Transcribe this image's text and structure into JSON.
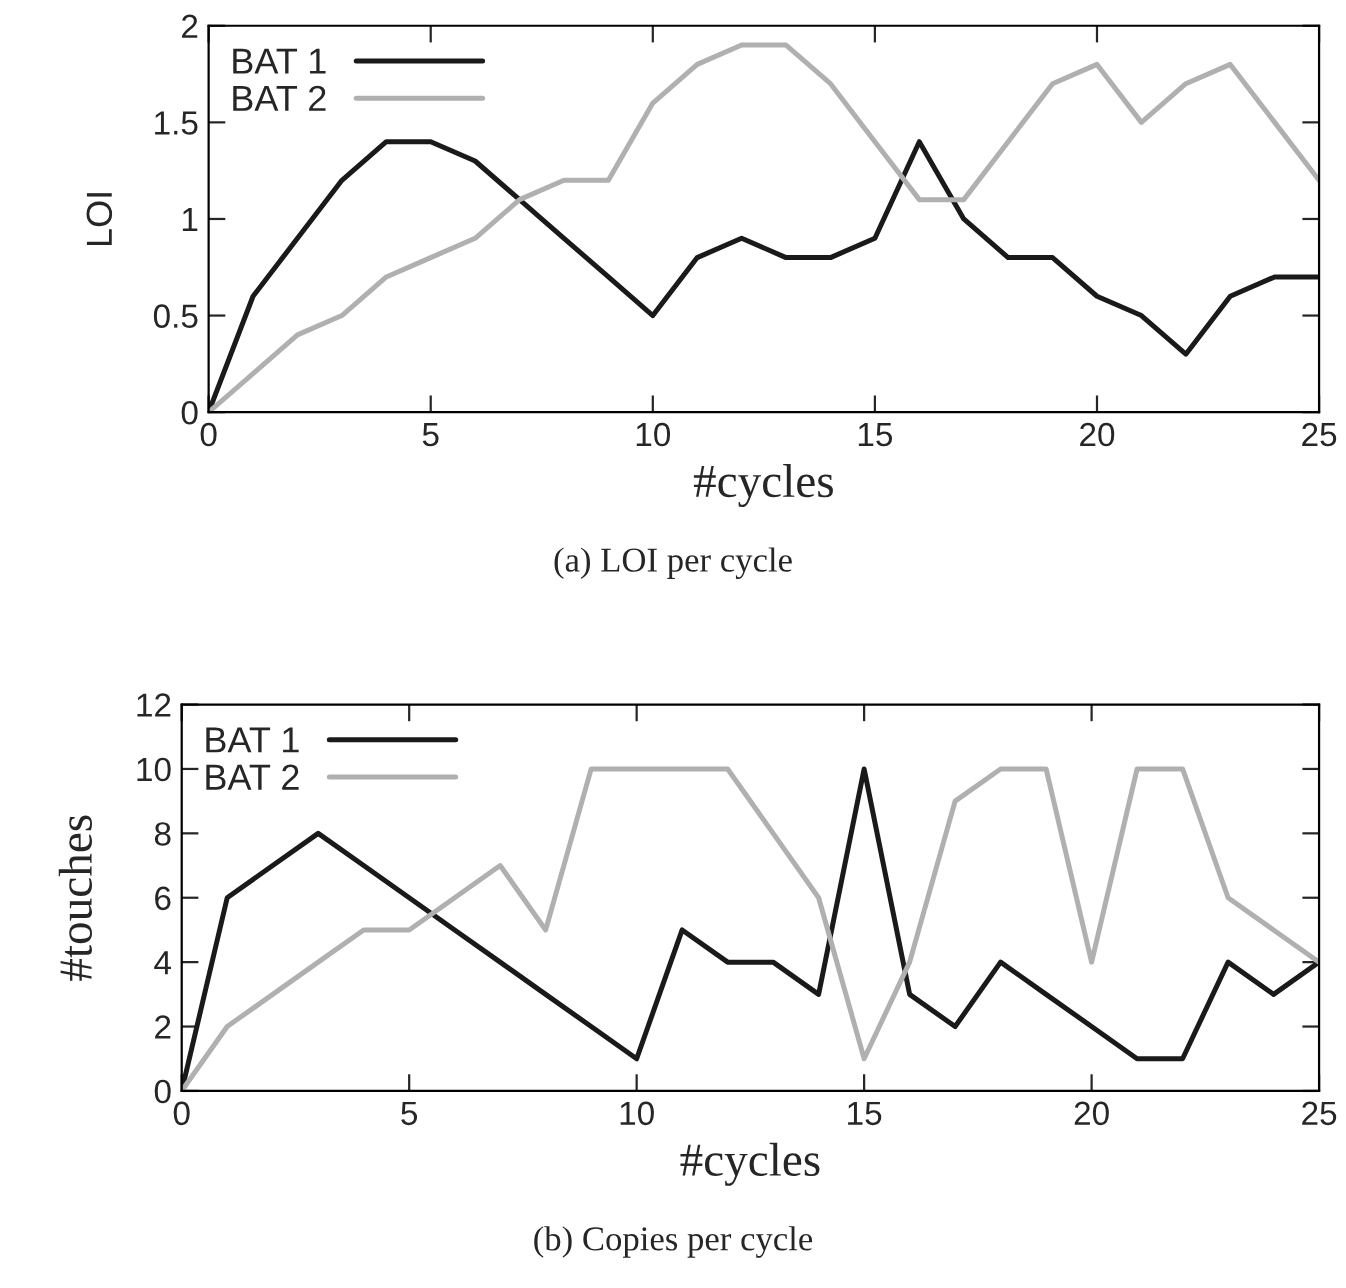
{
  "chart_data": [
    {
      "type": "line",
      "xlabel": "#cycles",
      "ylabel": "LOI",
      "x": [
        0,
        1,
        2,
        3,
        4,
        5,
        6,
        7,
        8,
        9,
        10,
        11,
        12,
        13,
        14,
        15,
        16,
        17,
        18,
        19,
        20,
        21,
        22,
        23,
        24,
        25
      ],
      "series": [
        {
          "name": "BAT 1",
          "color": "#1a1a1a",
          "values": [
            0,
            0.6,
            0.9,
            1.2,
            1.4,
            1.4,
            1.3,
            1.1,
            0.9,
            0.7,
            0.5,
            0.8,
            0.9,
            0.8,
            0.8,
            0.9,
            1.4,
            1.0,
            0.8,
            0.8,
            0.6,
            0.5,
            0.3,
            0.6,
            0.7,
            0.7
          ]
        },
        {
          "name": "BAT 2",
          "color": "#b0b0b0",
          "values": [
            0,
            0.2,
            0.4,
            0.5,
            0.7,
            0.8,
            0.9,
            1.1,
            1.2,
            1.2,
            1.6,
            1.8,
            1.9,
            1.9,
            1.7,
            1.4,
            1.1,
            1.1,
            1.4,
            1.7,
            1.8,
            1.5,
            1.7,
            1.8,
            1.5,
            1.2
          ]
        }
      ],
      "xlim": [
        0,
        25
      ],
      "xticks": [
        0,
        5,
        10,
        15,
        20,
        25
      ],
      "ylim": [
        0,
        2
      ],
      "yticks": [
        0,
        0.5,
        1,
        1.5,
        2
      ],
      "legend": "top left",
      "grid": false,
      "marker": "none",
      "line_style": "solid",
      "annotations": [
        "(a) LOI per cycle"
      ]
    },
    {
      "type": "line",
      "xlabel": "#cycles",
      "ylabel": "#touches",
      "x": [
        0,
        1,
        2,
        3,
        4,
        5,
        6,
        7,
        8,
        9,
        10,
        11,
        12,
        13,
        14,
        15,
        16,
        17,
        18,
        19,
        20,
        21,
        22,
        23,
        24,
        25
      ],
      "series": [
        {
          "name": "BAT 1",
          "color": "#1a1a1a",
          "values": [
            0,
            6,
            7,
            8,
            7,
            6,
            5,
            4,
            3,
            2,
            1,
            5,
            4,
            4,
            3,
            10,
            3,
            2,
            4,
            3,
            2,
            1,
            1,
            4,
            3,
            4
          ]
        },
        {
          "name": "BAT 2",
          "color": "#b0b0b0",
          "values": [
            0,
            2,
            3,
            4,
            5,
            5,
            6,
            7,
            5,
            10,
            10,
            10,
            10,
            8,
            6,
            1,
            4,
            9,
            10,
            10,
            4,
            10,
            10,
            6,
            5,
            4
          ]
        }
      ],
      "xlim": [
        0,
        25
      ],
      "xticks": [
        0,
        5,
        10,
        15,
        20,
        25
      ],
      "ylim": [
        0,
        12
      ],
      "yticks": [
        0,
        2,
        4,
        6,
        8,
        10,
        12
      ],
      "legend": "top left",
      "grid": false,
      "marker": "none",
      "line_style": "solid",
      "annotations": [
        "(b) Copies per cycle"
      ]
    }
  ]
}
